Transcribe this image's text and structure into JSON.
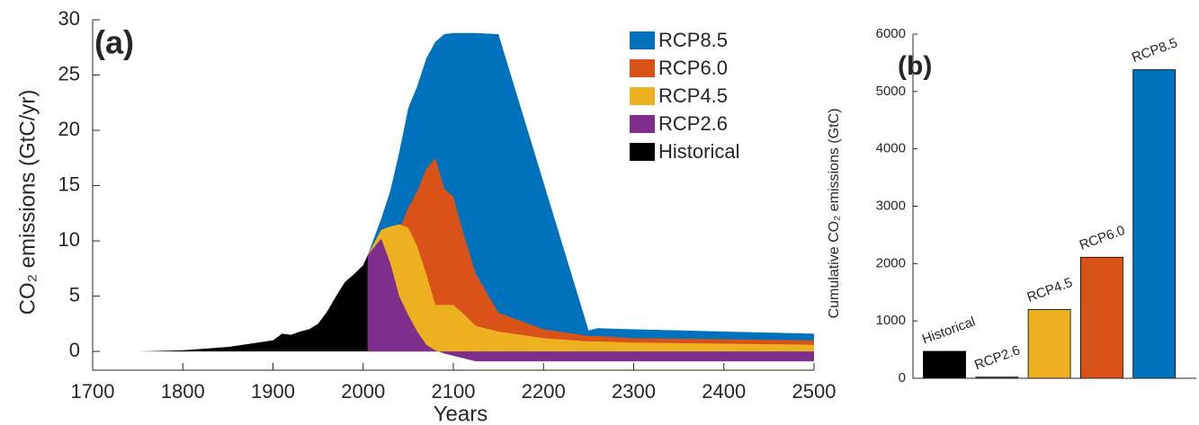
{
  "chart_data": [
    {
      "type": "area",
      "panel_label": "(a)",
      "xlabel": "Years",
      "ylabel": "CO₂ emissions (GtC/yr)",
      "x": [
        1750,
        1800,
        1850,
        1900,
        1910,
        1920,
        1930,
        1940,
        1950,
        1960,
        1970,
        1980,
        1990,
        2000,
        2005,
        2020,
        2030,
        2040,
        2050,
        2060,
        2070,
        2080,
        2090,
        2100,
        2110,
        2125,
        2150,
        2200,
        2250,
        2260,
        2300,
        2400,
        2500
      ],
      "series": [
        {
          "name": "RCP8.5",
          "color": "#0072BD",
          "values": [
            null,
            null,
            null,
            null,
            null,
            null,
            null,
            null,
            null,
            null,
            null,
            null,
            null,
            null,
            8.7,
            12,
            14.5,
            18,
            22,
            24,
            26.5,
            28,
            28.7,
            28.8,
            28.8,
            28.8,
            28.7,
            15.3,
            1.9,
            2.1,
            2.0,
            1.8,
            1.6
          ]
        },
        {
          "name": "RCP6.0",
          "color": "#D95319",
          "values": [
            null,
            null,
            null,
            null,
            null,
            null,
            null,
            null,
            null,
            null,
            null,
            null,
            null,
            null,
            8.7,
            10,
            10.5,
            11,
            13,
            14.5,
            16.5,
            17.5,
            14.7,
            14,
            11,
            7,
            3.5,
            2,
            1.4,
            1.4,
            1.2,
            1.1,
            1.0
          ]
        },
        {
          "name": "RCP4.5",
          "color": "#EDB120",
          "values": [
            null,
            null,
            null,
            null,
            null,
            null,
            null,
            null,
            null,
            null,
            null,
            null,
            null,
            null,
            8.7,
            11,
            11.3,
            11.5,
            11.2,
            9.5,
            7,
            4.2,
            4.2,
            4.2,
            3.5,
            2.3,
            1.8,
            1.2,
            0.9,
            0.9,
            0.8,
            0.7,
            0.6
          ]
        },
        {
          "name": "RCP2.6",
          "color": "#7E2F8E",
          "values": [
            null,
            null,
            null,
            null,
            null,
            null,
            null,
            null,
            null,
            null,
            null,
            null,
            null,
            null,
            8.7,
            10.2,
            8,
            5,
            3.3,
            1.8,
            0.6,
            0.1,
            -0.2,
            -0.4,
            -0.6,
            -0.9,
            -0.9,
            -0.9,
            -0.9,
            -0.9,
            -0.9,
            -0.9,
            -0.9
          ]
        },
        {
          "name": "Historical",
          "color": "#000000",
          "values": [
            0,
            0.1,
            0.4,
            1.0,
            1.6,
            1.5,
            1.8,
            2.0,
            2.5,
            3.6,
            5.0,
            6.3,
            7.0,
            7.8,
            8.7,
            null,
            null,
            null,
            null,
            null,
            null,
            null,
            null,
            null,
            null,
            null,
            null,
            null,
            null,
            null,
            null,
            null,
            null
          ]
        }
      ],
      "xlim": [
        1700,
        2500
      ],
      "ylim": [
        -1.7,
        30
      ],
      "xticks": [
        1700,
        1800,
        1900,
        2000,
        2100,
        2200,
        2300,
        2400,
        2500
      ],
      "yticks": [
        0,
        5,
        10,
        15,
        20,
        25,
        30
      ],
      "legend": "upper right"
    },
    {
      "type": "bar",
      "panel_label": "(b)",
      "ylabel": "Cumulative CO₂ emissions (GtC)",
      "categories": [
        "Historical",
        "RCP2.6",
        "RCP4.5",
        "RCP6.0",
        "RCP8.5"
      ],
      "values": [
        470,
        20,
        1200,
        2110,
        5380
      ],
      "colors": [
        "#000000",
        "#7E2F8E",
        "#EDB120",
        "#D95319",
        "#0072BD"
      ],
      "ylim": [
        0,
        6000
      ],
      "yticks": [
        0,
        1000,
        2000,
        3000,
        4000,
        5000,
        6000
      ]
    }
  ]
}
